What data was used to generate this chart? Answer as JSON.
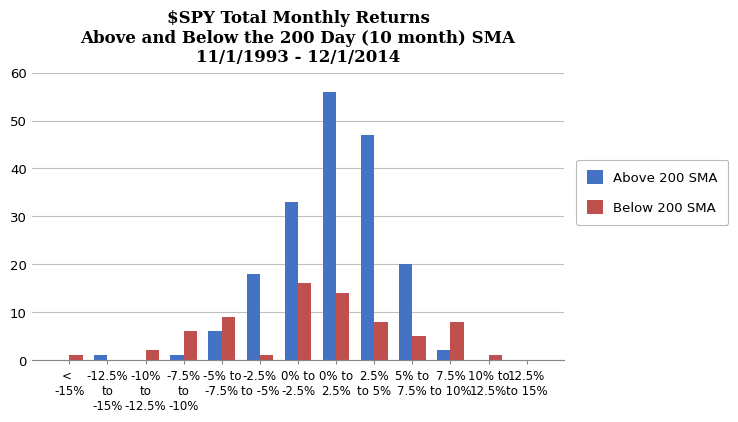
{
  "title": "$SPY Total Monthly Returns\nAbove and Below the 200 Day (10 month) SMA\n11/1/1993 - 12/1/2014",
  "categories": [
    "< \n-15%",
    "-12.5%\nto\n-15%",
    "-10%\nto\n-12.5%",
    "-7.5%\nto\n-10%",
    "-5% to\n-7.5%",
    "-2.5%\nto -5%",
    "0% to\n-2.5%",
    "0% to\n2.5%",
    "2.5%\nto 5%",
    "5% to\n7.5%",
    "7.5%\nto 10%",
    "10% to\n12.5%",
    "12.5%\nto 15%"
  ],
  "above_200": [
    0,
    1,
    0,
    1,
    6,
    18,
    33,
    56,
    47,
    20,
    2,
    0,
    0
  ],
  "below_200": [
    1,
    0,
    2,
    6,
    9,
    1,
    16,
    14,
    8,
    5,
    8,
    1,
    0
  ],
  "above_color": "#4472C4",
  "below_color": "#C0504D",
  "ylim": [
    0,
    60
  ],
  "yticks": [
    0,
    10,
    20,
    30,
    40,
    50,
    60
  ],
  "legend_labels": [
    "Above 200 SMA",
    "Below 200 SMA"
  ],
  "background_color": "#FFFFFF",
  "grid_color": "#C0C0C0",
  "title_fontsize": 12,
  "axis_fontsize": 8.5,
  "bar_width": 0.35
}
